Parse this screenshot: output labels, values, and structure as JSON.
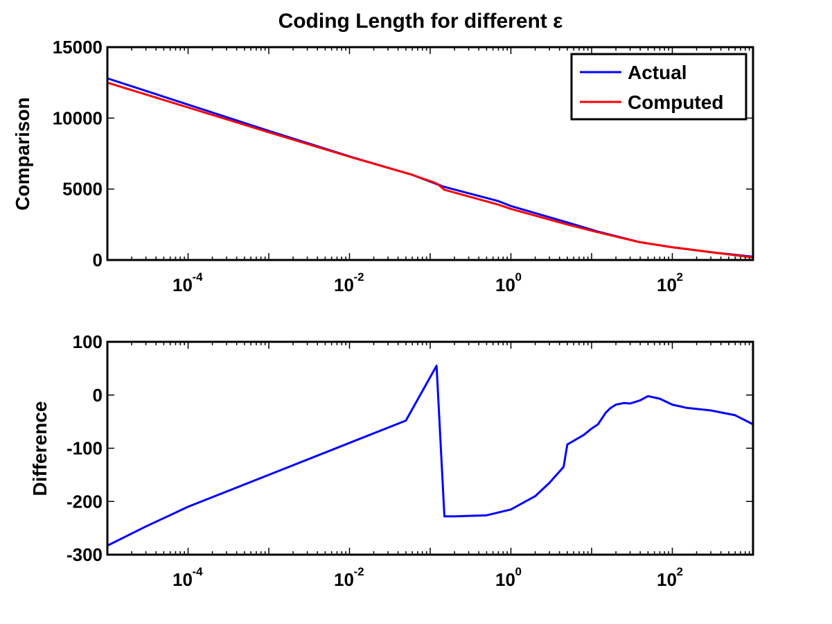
{
  "chart_data": [
    {
      "type": "line",
      "title": "Coding Length for different ε",
      "xlabel": "",
      "ylabel": "Comparison",
      "xscale": "log",
      "xlim": [
        1e-05,
        1000
      ],
      "ylim": [
        0,
        15000
      ],
      "xticks": [
        {
          "base": "10",
          "exp": "-4",
          "value": 0.0001
        },
        {
          "base": "10",
          "exp": "-2",
          "value": 0.01
        },
        {
          "base": "10",
          "exp": "0",
          "value": 1
        },
        {
          "base": "10",
          "exp": "2",
          "value": 100
        }
      ],
      "yticks": [
        "0",
        "5000",
        "10000",
        "15000"
      ],
      "legend": {
        "position": "top-right"
      },
      "series": [
        {
          "name": "Actual",
          "color": "#0000ff",
          "x": [
            1e-05,
            0.0001,
            0.001,
            0.01,
            0.06,
            0.12,
            0.15,
            0.7,
            1,
            5,
            12,
            40,
            100,
            300,
            1000
          ],
          "y": [
            12800,
            10950,
            9100,
            7300,
            6000,
            5350,
            5150,
            4150,
            3800,
            2650,
            2000,
            1250,
            900,
            550,
            230
          ]
        },
        {
          "name": "Computed",
          "color": "#ff0000",
          "x": [
            1e-05,
            0.0001,
            0.001,
            0.01,
            0.06,
            0.12,
            0.15,
            0.7,
            1,
            5,
            12,
            40,
            100,
            300,
            1000
          ],
          "y": [
            12500,
            10750,
            9000,
            7280,
            6000,
            5400,
            4950,
            3900,
            3600,
            2500,
            1950,
            1250,
            900,
            550,
            180
          ]
        }
      ]
    },
    {
      "type": "line",
      "title": "",
      "xlabel": "",
      "ylabel": "Difference",
      "xscale": "log",
      "xlim": [
        1e-05,
        1000
      ],
      "ylim": [
        -300,
        100
      ],
      "xticks": [
        {
          "base": "10",
          "exp": "-4",
          "value": 0.0001
        },
        {
          "base": "10",
          "exp": "-2",
          "value": 0.01
        },
        {
          "base": "10",
          "exp": "0",
          "value": 1
        },
        {
          "base": "10",
          "exp": "2",
          "value": 100
        }
      ],
      "yticks": [
        "-300",
        "-200",
        "-100",
        "0",
        "100"
      ],
      "series": [
        {
          "color": "#0000ff",
          "x": [
            1e-05,
            3e-05,
            0.0001,
            0.001,
            0.01,
            0.05,
            0.12,
            0.15,
            0.2,
            0.5,
            1,
            2,
            3,
            4.5,
            5,
            8,
            10,
            12,
            15,
            17,
            20,
            25,
            30,
            40,
            50,
            70,
            100,
            150,
            300,
            600,
            1000
          ],
          "y": [
            -283,
            -247,
            -210,
            -150,
            -90,
            -48,
            55,
            -228,
            -228,
            -226,
            -215,
            -190,
            -165,
            -135,
            -93,
            -75,
            -63,
            -55,
            -33,
            -25,
            -18,
            -15,
            -16,
            -10,
            -2,
            -7,
            -18,
            -24,
            -29,
            -38,
            -55
          ]
        }
      ]
    }
  ]
}
